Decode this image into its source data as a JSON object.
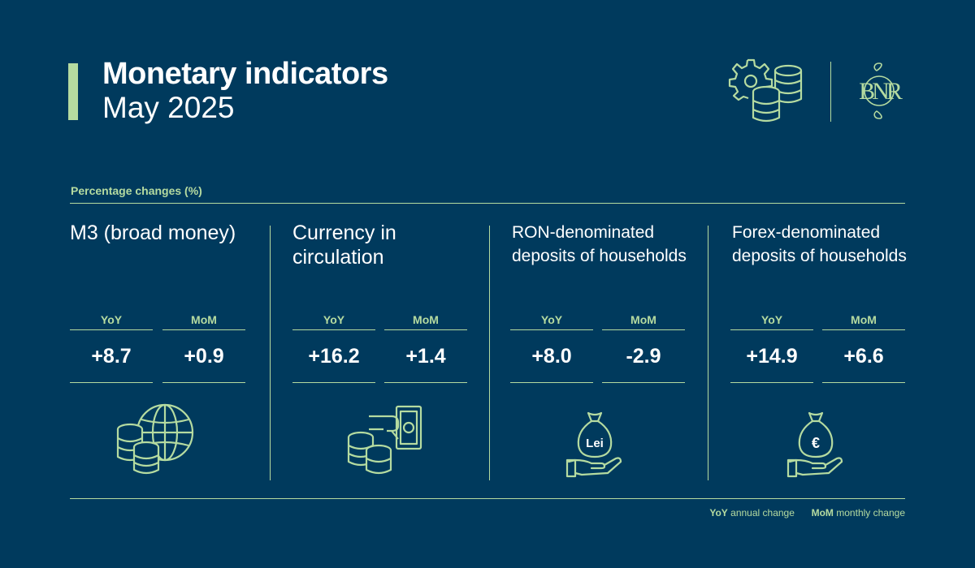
{
  "header": {
    "title": "Monetary indicators",
    "subtitle": "May 2025",
    "logo_letters": "BNR"
  },
  "section_label": "Percentage changes (%)",
  "legend": {
    "yoy_abbr": "YoY",
    "yoy_text": "annual change",
    "mom_abbr": "MoM",
    "mom_text": "monthly change"
  },
  "colors": {
    "background": "#003a5d",
    "accent": "#b5dba0",
    "text": "#ffffff"
  },
  "chart_data": {
    "type": "table",
    "title": "Monetary indicators",
    "subtitle": "May 2025",
    "unit": "Percentage changes (%)",
    "columns": [
      "YoY",
      "MoM"
    ],
    "rows": [
      {
        "name": "M3 (broad money)",
        "yoy": "+8.7",
        "mom": "+0.9",
        "icon": "coins-globe-icon"
      },
      {
        "name": "Currency in circulation",
        "yoy": "+16.2",
        "mom": "+1.4",
        "icon": "coins-banknote-hand-icon"
      },
      {
        "name": "RON-denominated deposits of households",
        "yoy": "+8.0",
        "mom": "-2.9",
        "icon": "lei-money-bag-hand-icon",
        "icon_text": "Lei"
      },
      {
        "name": "Forex-denominated deposits of households",
        "yoy": "+14.9",
        "mom": "+6.6",
        "icon": "euro-money-bag-hand-icon",
        "icon_text": "€"
      }
    ]
  }
}
